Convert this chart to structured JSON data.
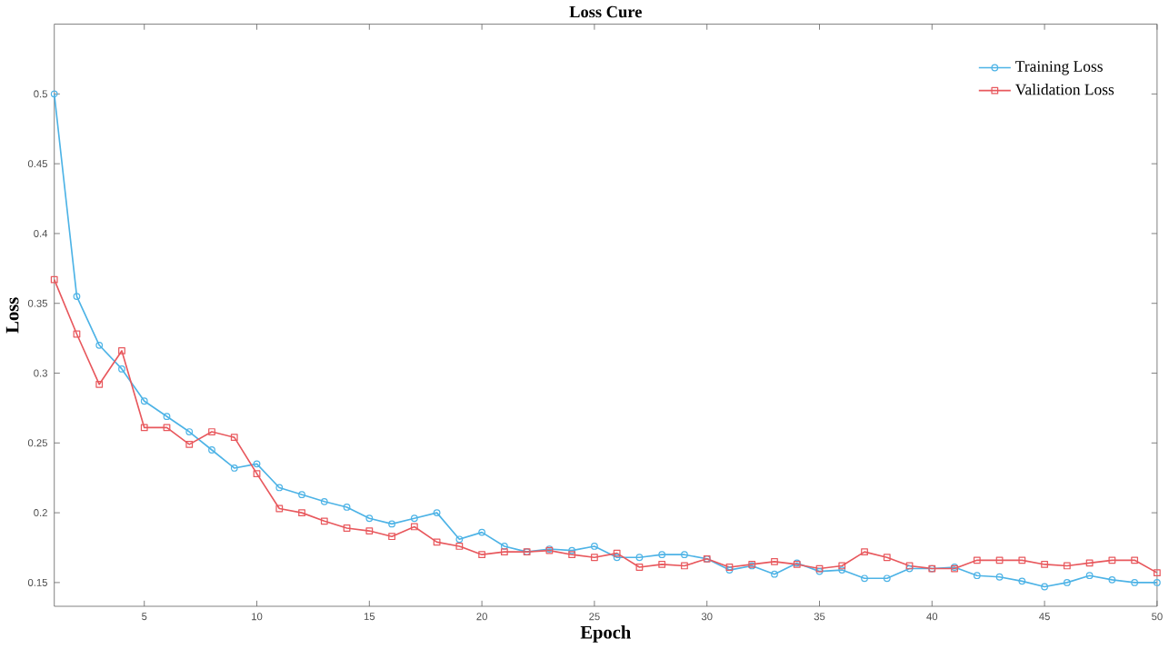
{
  "chart_data": {
    "type": "line",
    "title": "Loss Cure",
    "xlabel": "Epoch",
    "ylabel": "Loss",
    "x": [
      1,
      2,
      3,
      4,
      5,
      6,
      7,
      8,
      9,
      10,
      11,
      12,
      13,
      14,
      15,
      16,
      17,
      18,
      19,
      20,
      21,
      22,
      23,
      24,
      25,
      26,
      27,
      28,
      29,
      30,
      31,
      32,
      33,
      34,
      35,
      36,
      37,
      38,
      39,
      40,
      41,
      42,
      43,
      44,
      45,
      46,
      47,
      48,
      49,
      50
    ],
    "series": [
      {
        "name": "Training Loss",
        "color": "#4db3e6",
        "marker": "circle",
        "values": [
          0.5,
          0.355,
          0.32,
          0.303,
          0.28,
          0.269,
          0.258,
          0.245,
          0.232,
          0.235,
          0.218,
          0.213,
          0.208,
          0.204,
          0.196,
          0.192,
          0.196,
          0.2,
          0.181,
          0.186,
          0.176,
          0.172,
          0.174,
          0.173,
          0.176,
          0.168,
          0.168,
          0.17,
          0.17,
          0.167,
          0.159,
          0.162,
          0.156,
          0.164,
          0.158,
          0.159,
          0.153,
          0.153,
          0.16,
          0.16,
          0.161,
          0.155,
          0.154,
          0.151,
          0.147,
          0.15,
          0.155,
          0.152,
          0.15,
          0.15
        ]
      },
      {
        "name": "Validation Loss",
        "color": "#e8585d",
        "marker": "square",
        "values": [
          0.367,
          0.328,
          0.292,
          0.316,
          0.261,
          0.261,
          0.249,
          0.258,
          0.254,
          0.228,
          0.203,
          0.2,
          0.194,
          0.189,
          0.187,
          0.183,
          0.19,
          0.179,
          0.176,
          0.17,
          0.172,
          0.172,
          0.173,
          0.17,
          0.168,
          0.171,
          0.161,
          0.163,
          0.162,
          0.167,
          0.161,
          0.163,
          0.165,
          0.163,
          0.16,
          0.162,
          0.172,
          0.168,
          0.162,
          0.16,
          0.16,
          0.166,
          0.166,
          0.166,
          0.163,
          0.162,
          0.164,
          0.166,
          0.166,
          0.157
        ]
      }
    ],
    "xlim": [
      1,
      50
    ],
    "ylim": [
      0.133,
      0.55
    ],
    "xticks": [
      5,
      10,
      15,
      20,
      25,
      30,
      35,
      40,
      45,
      50
    ],
    "yticks": [
      0.15,
      0.2,
      0.25,
      0.3,
      0.35,
      0.4,
      0.45,
      0.5
    ],
    "grid": false,
    "legend": "top right",
    "line_style": "solid"
  }
}
